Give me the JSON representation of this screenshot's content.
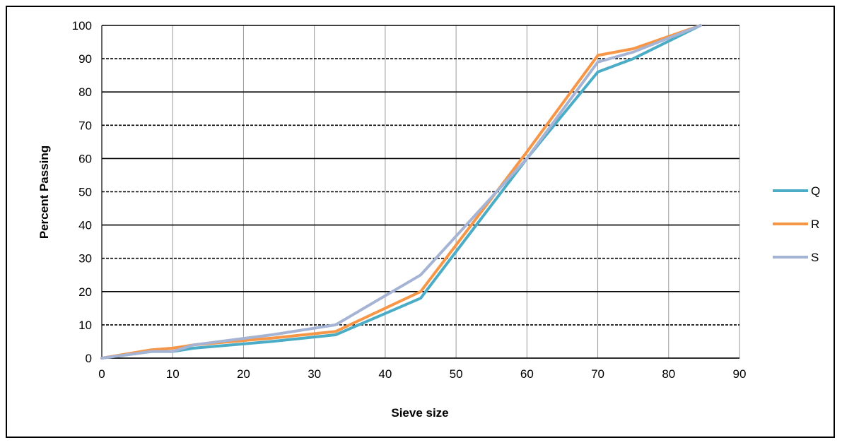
{
  "chart_data": {
    "type": "line",
    "xlabel": "Sieve size",
    "ylabel": "Percent Passing",
    "xlim": [
      0,
      90
    ],
    "ylim": [
      0,
      100
    ],
    "xticks": [
      "0",
      "10",
      "20",
      "30",
      "40",
      "50",
      "60",
      "70",
      "80",
      "90"
    ],
    "yticks": [
      "0",
      "10",
      "20",
      "30",
      "40",
      "50",
      "60",
      "70",
      "80",
      "90",
      "100"
    ],
    "grid": "on",
    "legend_position": "right",
    "series": [
      {
        "name": "Q",
        "color": "#4bacc6",
        "points": [
          [
            0,
            0
          ],
          [
            7,
            2
          ],
          [
            10,
            2
          ],
          [
            13,
            3
          ],
          [
            24,
            5
          ],
          [
            33,
            7
          ],
          [
            45,
            18
          ],
          [
            60,
            60
          ],
          [
            70,
            86
          ],
          [
            75,
            90
          ],
          [
            84.5,
            100
          ]
        ]
      },
      {
        "name": "R",
        "color": "#f79646",
        "points": [
          [
            0,
            0
          ],
          [
            7,
            2.5
          ],
          [
            10,
            3
          ],
          [
            13,
            4
          ],
          [
            24,
            6
          ],
          [
            33,
            8
          ],
          [
            45,
            20
          ],
          [
            60,
            62
          ],
          [
            70,
            91
          ],
          [
            75,
            93
          ],
          [
            84.5,
            100
          ]
        ]
      },
      {
        "name": "S",
        "color": "#a5b4d4",
        "points": [
          [
            0,
            0
          ],
          [
            7,
            2
          ],
          [
            10,
            2
          ],
          [
            13,
            4
          ],
          [
            24,
            7
          ],
          [
            33,
            10
          ],
          [
            45,
            25
          ],
          [
            60,
            60
          ],
          [
            70,
            89
          ],
          [
            75,
            92
          ],
          [
            84.5,
            100
          ]
        ]
      }
    ]
  }
}
